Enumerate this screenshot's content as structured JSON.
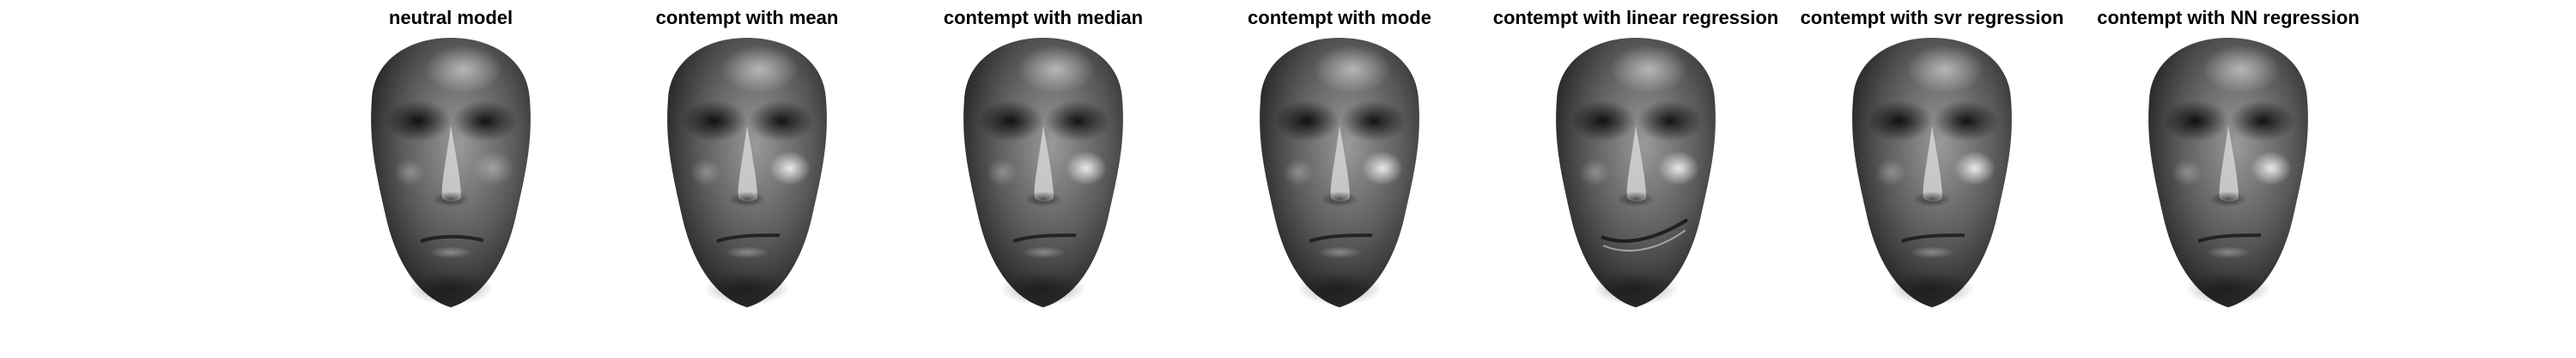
{
  "figure": {
    "panels": [
      {
        "title": "neutral model",
        "variant": "neutral"
      },
      {
        "title": "contempt with mean",
        "variant": "mean"
      },
      {
        "title": "contempt with median",
        "variant": "median"
      },
      {
        "title": "contempt with mode",
        "variant": "mode"
      },
      {
        "title": "contempt with linear regression",
        "variant": "linear"
      },
      {
        "title": "contempt with svr regression",
        "variant": "svr"
      },
      {
        "title": "contempt with NN regression",
        "variant": "nn"
      }
    ]
  }
}
